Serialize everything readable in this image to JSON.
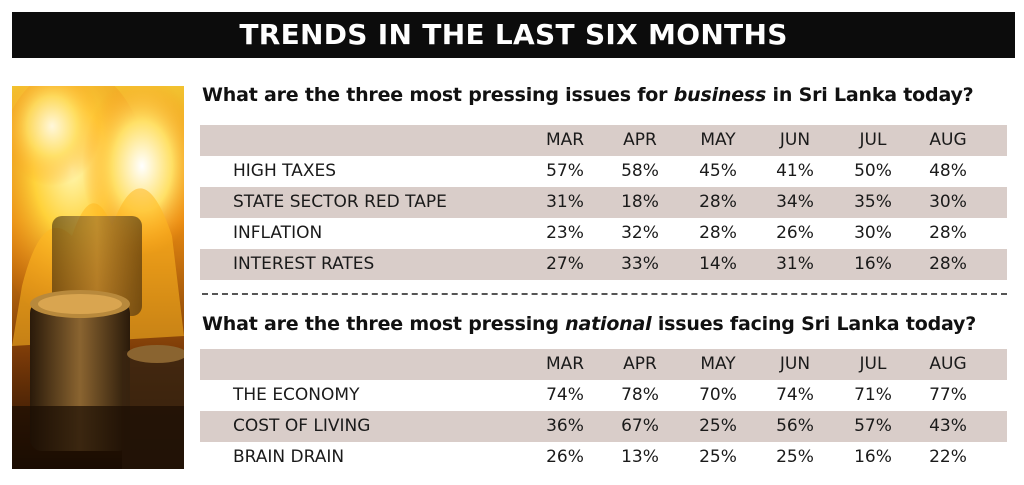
{
  "banner": "TRENDS IN THE LAST SIX MONTHS",
  "business": {
    "question_pre": "What are the three most pressing issues for ",
    "question_em": "business",
    "question_post": " in Sri Lanka today?",
    "months": [
      "MAR",
      "APR",
      "MAY",
      "JUN",
      "JUL",
      "AUG"
    ],
    "rows": [
      {
        "label": "HIGH TAXES",
        "values": [
          "57%",
          "58%",
          "45%",
          "41%",
          "50%",
          "48%"
        ]
      },
      {
        "label": "STATE SECTOR RED TAPE",
        "values": [
          "31%",
          "18%",
          "28%",
          "34%",
          "35%",
          "30%"
        ]
      },
      {
        "label": "INFLATION",
        "values": [
          "23%",
          "32%",
          "28%",
          "26%",
          "30%",
          "28%"
        ]
      },
      {
        "label": "INTEREST RATES",
        "values": [
          "27%",
          "33%",
          "14%",
          "31%",
          "16%",
          "28%"
        ]
      }
    ]
  },
  "national": {
    "question_pre": "What are the three most pressing ",
    "question_em": "national",
    "question_post": " issues facing Sri Lanka today?",
    "months": [
      "MAR",
      "APR",
      "MAY",
      "JUN",
      "JUL",
      "AUG"
    ],
    "rows": [
      {
        "label": "THE ECONOMY",
        "values": [
          "74%",
          "78%",
          "70%",
          "74%",
          "71%",
          "77%"
        ]
      },
      {
        "label": "COST OF LIVING",
        "values": [
          "36%",
          "67%",
          "25%",
          "56%",
          "57%",
          "43%"
        ]
      },
      {
        "label": "BRAIN DRAIN",
        "values": [
          "26%",
          "13%",
          "25%",
          "25%",
          "16%",
          "22%"
        ]
      }
    ]
  },
  "colors": {
    "banner_bg": "#0c0c0c",
    "row_shade": "#d9cdc9"
  }
}
